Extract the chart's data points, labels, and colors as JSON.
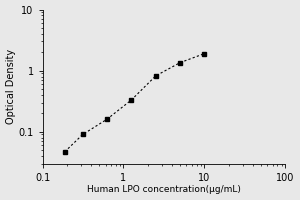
{
  "x": [
    0.188,
    0.313,
    0.625,
    1.25,
    2.5,
    5.0,
    10.0
  ],
  "y": [
    0.047,
    0.09,
    0.16,
    0.33,
    0.82,
    1.35,
    1.9
  ],
  "xlabel": "Human LPO concentration(μg/mL)",
  "ylabel": "Optical Density",
  "xlim": [
    0.1,
    100
  ],
  "ylim": [
    0.03,
    10
  ],
  "line_color": "black",
  "marker": "s",
  "marker_color": "black",
  "marker_size": 3.5,
  "linestyle": "dotted",
  "background_color": "#e8e8e8",
  "plot_bg_color": "#e8e8e8",
  "xticks": [
    0.1,
    1,
    10,
    100
  ],
  "yticks": [
    0.1,
    1,
    10
  ],
  "xlabel_fontsize": 6.5,
  "ylabel_fontsize": 7,
  "tick_fontsize": 7
}
